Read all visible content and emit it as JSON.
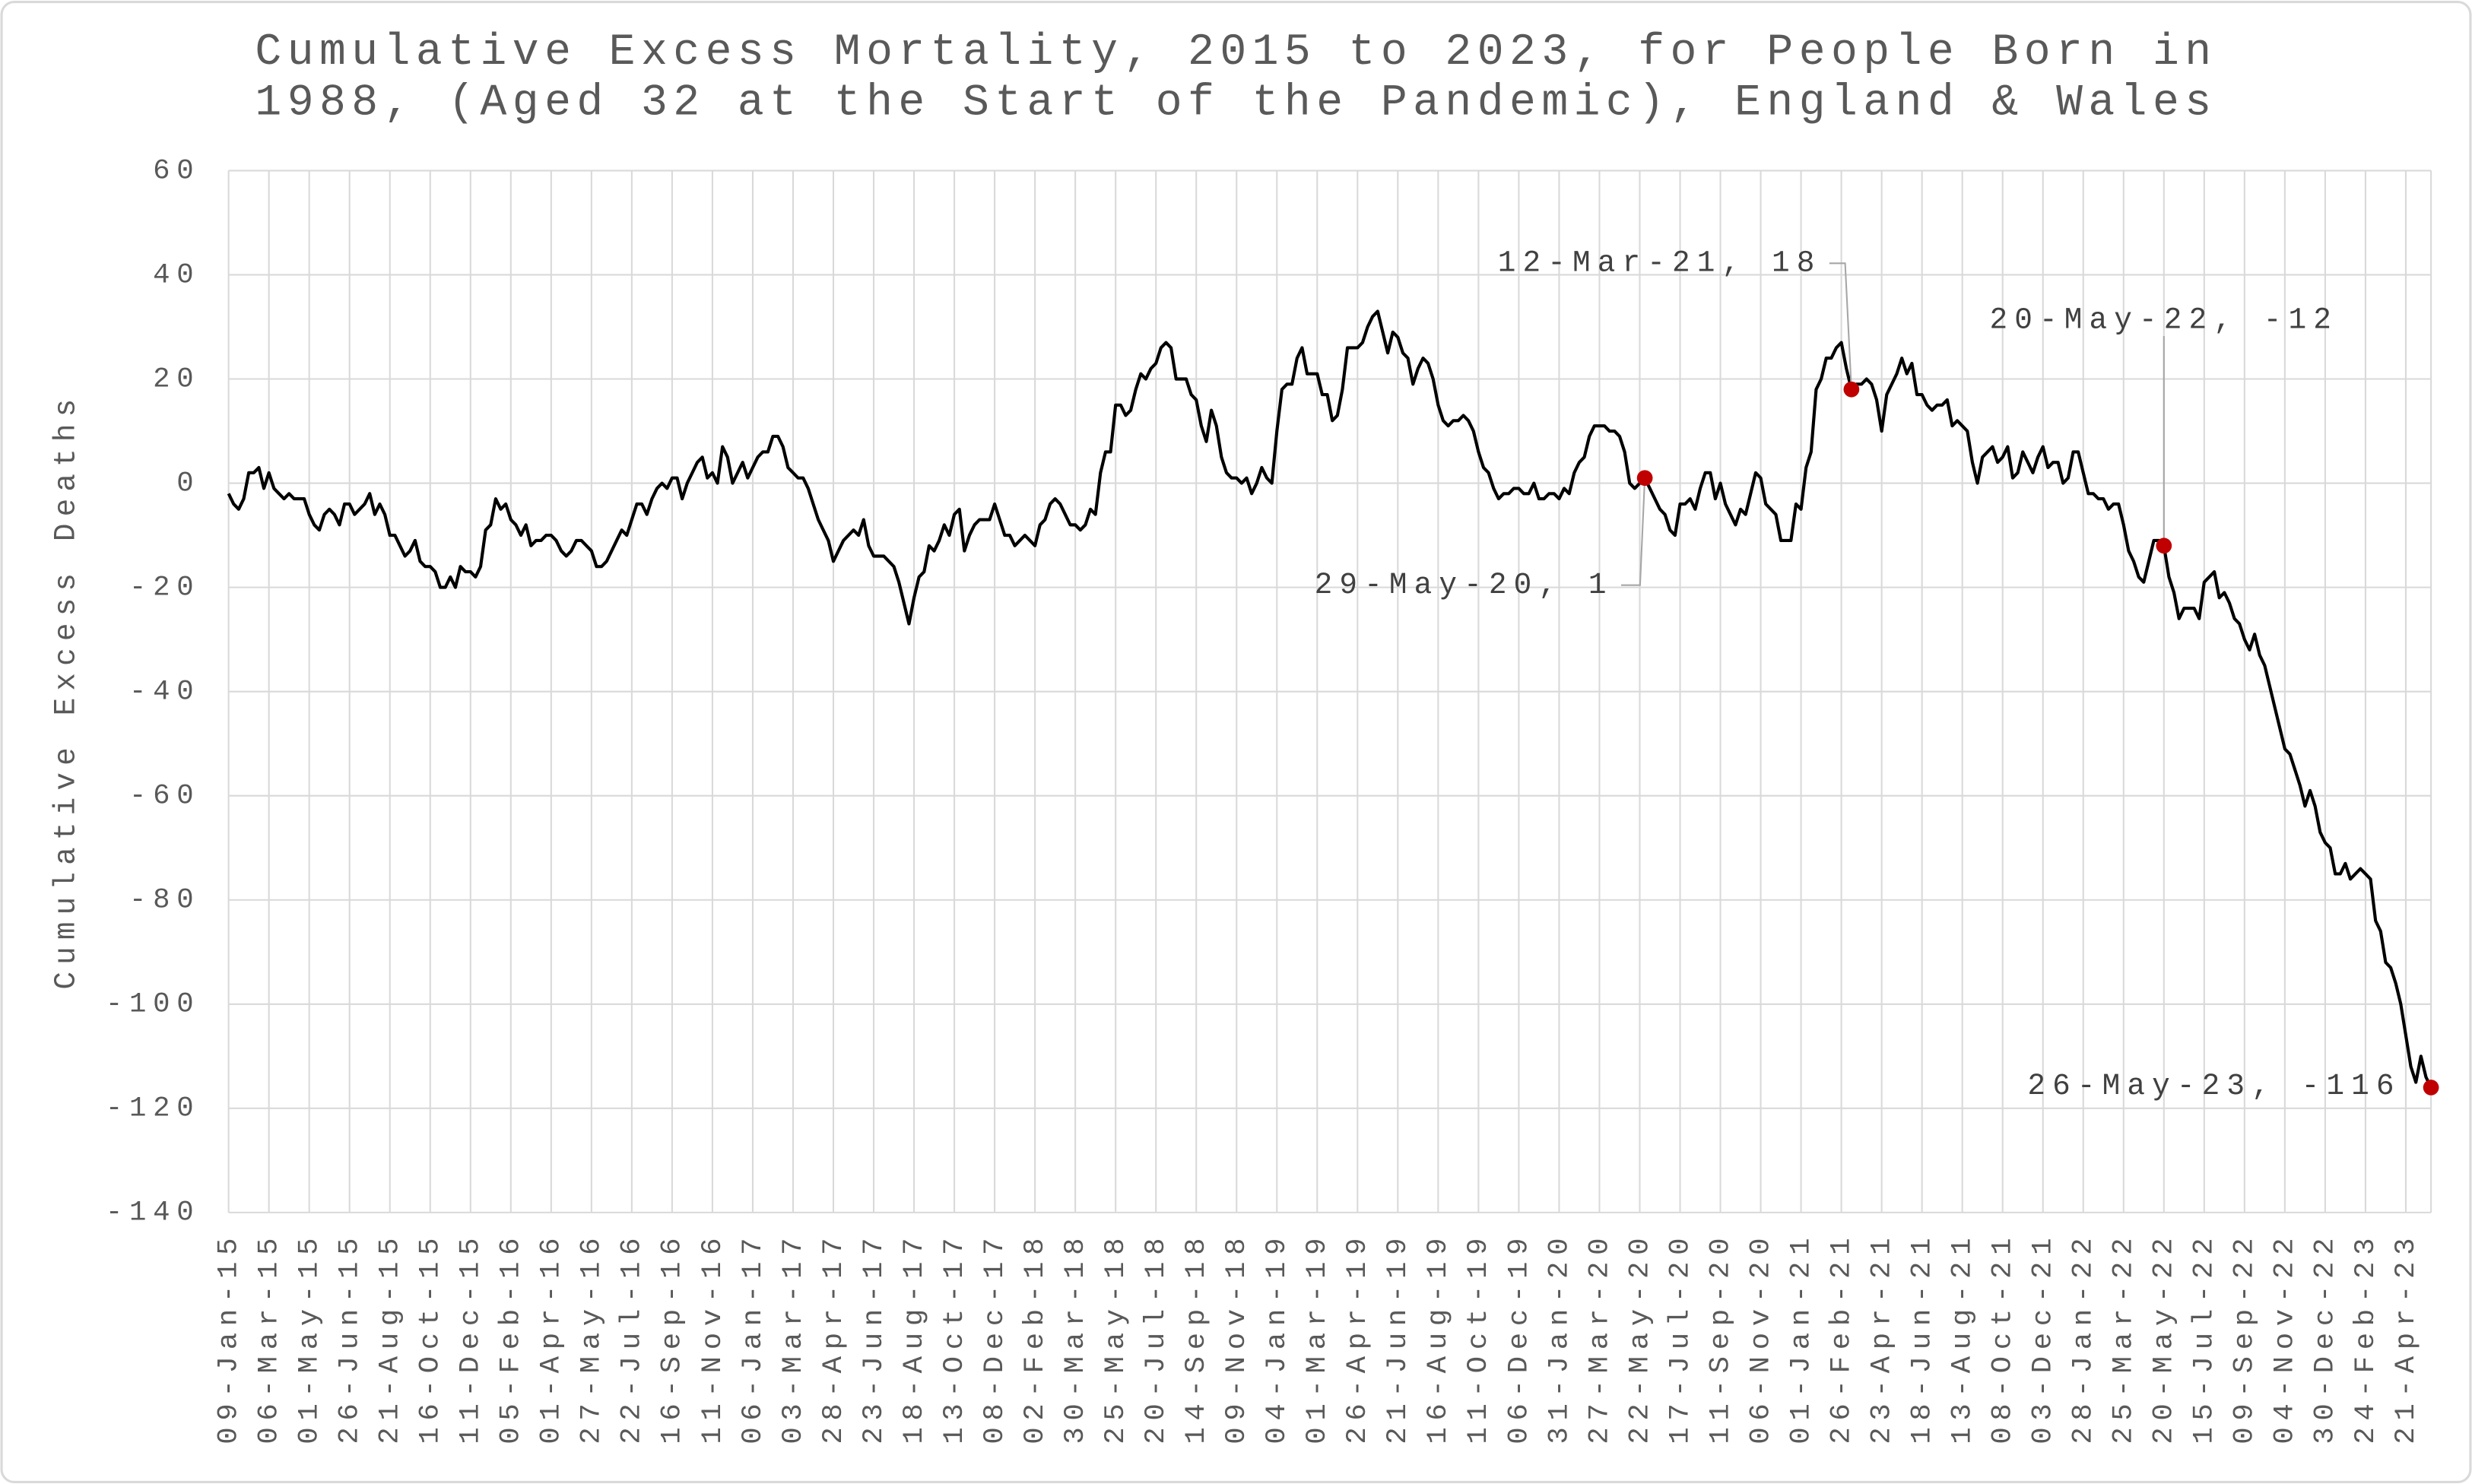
{
  "chart_data": {
    "type": "line",
    "title": [
      "Cumulative Excess Mortality, 2015 to 2023, for People Born in",
      "1988, (Aged 32 at the Start of the Pandemic), England & Wales"
    ],
    "y_label": "Cumulative Excess Deaths",
    "color": "#000000",
    "marker_color": "#c00000",
    "grid": true,
    "ylim": [
      -140,
      60
    ],
    "yticks": [
      60,
      40,
      20,
      0,
      -20,
      -40,
      -60,
      -80,
      -100,
      -120,
      -140
    ],
    "categories": [
      "09-Jan-15",
      null,
      null,
      null,
      null,
      null,
      null,
      null,
      "06-Mar-15",
      null,
      null,
      null,
      null,
      null,
      null,
      null,
      "01-May-15",
      null,
      null,
      null,
      null,
      null,
      null,
      null,
      "26-Jun-15",
      null,
      null,
      null,
      null,
      null,
      null,
      null,
      "21-Aug-15",
      null,
      null,
      null,
      null,
      null,
      null,
      null,
      "16-Oct-15",
      null,
      null,
      null,
      null,
      null,
      null,
      null,
      "11-Dec-15",
      null,
      null,
      null,
      null,
      null,
      null,
      null,
      "05-Feb-16",
      null,
      null,
      null,
      null,
      null,
      null,
      null,
      "01-Apr-16",
      null,
      null,
      null,
      null,
      null,
      null,
      null,
      "27-May-16",
      null,
      null,
      null,
      null,
      null,
      null,
      null,
      "22-Jul-16",
      null,
      null,
      null,
      null,
      null,
      null,
      null,
      "16-Sep-16",
      null,
      null,
      null,
      null,
      null,
      null,
      null,
      "11-Nov-16",
      null,
      null,
      null,
      null,
      null,
      null,
      null,
      "06-Jan-17",
      null,
      null,
      null,
      null,
      null,
      null,
      null,
      "03-Mar-17",
      null,
      null,
      null,
      null,
      null,
      null,
      null,
      "28-Apr-17",
      null,
      null,
      null,
      null,
      null,
      null,
      null,
      "23-Jun-17",
      null,
      null,
      null,
      null,
      null,
      null,
      null,
      "18-Aug-17",
      null,
      null,
      null,
      null,
      null,
      null,
      null,
      "13-Oct-17",
      null,
      null,
      null,
      null,
      null,
      null,
      null,
      "08-Dec-17",
      null,
      null,
      null,
      null,
      null,
      null,
      null,
      "02-Feb-18",
      null,
      null,
      null,
      null,
      null,
      null,
      null,
      "30-Mar-18",
      null,
      null,
      null,
      null,
      null,
      null,
      null,
      "25-May-18",
      null,
      null,
      null,
      null,
      null,
      null,
      null,
      "20-Jul-18",
      null,
      null,
      null,
      null,
      null,
      null,
      null,
      "14-Sep-18",
      null,
      null,
      null,
      null,
      null,
      null,
      null,
      "09-Nov-18",
      null,
      null,
      null,
      null,
      null,
      null,
      null,
      "04-Jan-19",
      null,
      null,
      null,
      null,
      null,
      null,
      null,
      "01-Mar-19",
      null,
      null,
      null,
      null,
      null,
      null,
      null,
      "26-Apr-19",
      null,
      null,
      null,
      null,
      null,
      null,
      null,
      "21-Jun-19",
      null,
      null,
      null,
      null,
      null,
      null,
      null,
      "16-Aug-19",
      null,
      null,
      null,
      null,
      null,
      null,
      null,
      "11-Oct-19",
      null,
      null,
      null,
      null,
      null,
      null,
      null,
      "06-Dec-19",
      null,
      null,
      null,
      null,
      null,
      null,
      null,
      "31-Jan-20",
      null,
      null,
      null,
      null,
      null,
      null,
      null,
      "27-Mar-20",
      null,
      null,
      null,
      null,
      null,
      null,
      null,
      "22-May-20",
      null,
      null,
      null,
      null,
      null,
      null,
      null,
      "17-Jul-20",
      null,
      null,
      null,
      null,
      null,
      null,
      null,
      "11-Sep-20",
      null,
      null,
      null,
      null,
      null,
      null,
      null,
      "06-Nov-20",
      null,
      null,
      null,
      null,
      null,
      null,
      null,
      "01-Jan-21",
      null,
      null,
      null,
      null,
      null,
      null,
      null,
      "26-Feb-21",
      null,
      null,
      null,
      null,
      null,
      null,
      null,
      "23-Apr-21",
      null,
      null,
      null,
      null,
      null,
      null,
      null,
      "18-Jun-21",
      null,
      null,
      null,
      null,
      null,
      null,
      null,
      "13-Aug-21",
      null,
      null,
      null,
      null,
      null,
      null,
      null,
      "08-Oct-21",
      null,
      null,
      null,
      null,
      null,
      null,
      null,
      "03-Dec-21",
      null,
      null,
      null,
      null,
      null,
      null,
      null,
      "28-Jan-22",
      null,
      null,
      null,
      null,
      null,
      null,
      null,
      "25-Mar-22",
      null,
      null,
      null,
      null,
      null,
      null,
      null,
      "20-May-22",
      null,
      null,
      null,
      null,
      null,
      null,
      null,
      "15-Jul-22",
      null,
      null,
      null,
      null,
      null,
      null,
      null,
      "09-Sep-22",
      null,
      null,
      null,
      null,
      null,
      null,
      null,
      "04-Nov-22",
      null,
      null,
      null,
      null,
      null,
      null,
      null,
      "30-Dec-22",
      null,
      null,
      null,
      null,
      null,
      null,
      null,
      "24-Feb-23",
      null,
      null,
      null,
      null,
      null,
      null,
      null,
      "21-Apr-23",
      null,
      null,
      null,
      null,
      null
    ],
    "values": [
      -2,
      -4,
      -5,
      -3,
      2,
      2,
      3,
      -1,
      2,
      -1,
      -2,
      -3,
      -2,
      -3,
      -3,
      -3,
      -6,
      -8,
      -9,
      -6,
      -5,
      -6,
      -8,
      -4,
      -4,
      -6,
      -5,
      -4,
      -2,
      -6,
      -4,
      -6,
      -10,
      -10,
      -12,
      -14,
      -13,
      -11,
      -15,
      -16,
      -16,
      -17,
      -20,
      -20,
      -18,
      -20,
      -16,
      -17,
      -17,
      -18,
      -16,
      -9,
      -8,
      -3,
      -5,
      -4,
      -7,
      -8,
      -10,
      -8,
      -12,
      -11,
      -11,
      -10,
      -10,
      -11,
      -13,
      -14,
      -13,
      -11,
      -11,
      -12,
      -13,
      -16,
      -16,
      -15,
      -13,
      -11,
      -9,
      -10,
      -7,
      -4,
      -4,
      -6,
      -3,
      -1,
      0,
      -1,
      1,
      1,
      -3,
      0,
      2,
      4,
      5,
      1,
      2,
      0,
      7,
      5,
      0,
      2,
      4,
      1,
      3,
      5,
      6,
      6,
      9,
      9,
      7,
      3,
      2,
      1,
      1,
      -1,
      -4,
      -7,
      -9,
      -11,
      -15,
      -13,
      -11,
      -10,
      -9,
      -10,
      -7,
      -12,
      -14,
      -14,
      -14,
      -15,
      -16,
      -19,
      -23,
      -27,
      -22,
      -18,
      -17,
      -12,
      -13,
      -11,
      -8,
      -10,
      -6,
      -5,
      -13,
      -10,
      -8,
      -7,
      -7,
      -7,
      -4,
      -7,
      -10,
      -10,
      -12,
      -11,
      -10,
      -11,
      -12,
      -8,
      -7,
      -4,
      -3,
      -4,
      -6,
      -8,
      -8,
      -9,
      -8,
      -5,
      -6,
      2,
      6,
      6,
      15,
      15,
      13,
      14,
      18,
      21,
      20,
      22,
      23,
      26,
      27,
      26,
      20,
      20,
      20,
      17,
      16,
      11,
      8,
      14,
      11,
      5,
      2,
      1,
      1,
      0,
      1,
      -2,
      0,
      3,
      1,
      0,
      10,
      18,
      19,
      19,
      24,
      26,
      21,
      21,
      21,
      17,
      17,
      12,
      13,
      18,
      26,
      26,
      26,
      27,
      30,
      32,
      33,
      29,
      25,
      29,
      28,
      25,
      24,
      19,
      22,
      24,
      23,
      20,
      15,
      12,
      11,
      12,
      12,
      13,
      12,
      10,
      6,
      3,
      2,
      -1,
      -3,
      -2,
      -2,
      -1,
      -1,
      -2,
      -2,
      0,
      -3,
      -3,
      -2,
      -2,
      -3,
      -1,
      -2,
      2,
      4,
      5,
      9,
      11,
      11,
      11,
      10,
      10,
      9,
      6,
      0,
      -1,
      0,
      1,
      -1,
      -3,
      -5,
      -6,
      -9,
      -10,
      -4,
      -4,
      -3,
      -5,
      -1,
      2,
      2,
      -3,
      0,
      -4,
      -6,
      -8,
      -5,
      -6,
      -2,
      2,
      1,
      -4,
      -5,
      -6,
      -11,
      -11,
      -11,
      -4,
      -5,
      3,
      6,
      18,
      20,
      24,
      24,
      26,
      27,
      22,
      18,
      19,
      19,
      20,
      19,
      16,
      10,
      17,
      19,
      21,
      24,
      21,
      23,
      17,
      17,
      15,
      14,
      15,
      15,
      16,
      11,
      12,
      11,
      10,
      4,
      0,
      5,
      6,
      7,
      4,
      5,
      7,
      1,
      2,
      6,
      4,
      2,
      5,
      7,
      3,
      4,
      4,
      0,
      1,
      6,
      6,
      2,
      -2,
      -2,
      -3,
      -3,
      -5,
      -4,
      -4,
      -8,
      -13,
      -15,
      -18,
      -19,
      -15,
      -11,
      -11,
      -12,
      -18,
      -21,
      -26,
      -24,
      -24,
      -24,
      -26,
      -19,
      -18,
      -17,
      -22,
      -21,
      -23,
      -26,
      -27,
      -30,
      -32,
      -29,
      -33,
      -35,
      -39,
      -43,
      -47,
      -51,
      -52,
      -55,
      -58,
      -62,
      -59,
      -62,
      -67,
      -69,
      -70,
      -75,
      -75,
      -73,
      -76,
      -75,
      -74,
      -75,
      -76,
      -84,
      -86,
      -92,
      -93,
      -96,
      -100,
      -106,
      -112,
      -115,
      -110,
      -114,
      -116
    ],
    "annotations": [
      {
        "text": "29-May-20, 1",
        "x": 281
      },
      {
        "text": "12-Mar-21, 18",
        "x": 322
      },
      {
        "text": "20-May-22, -12",
        "x": 384
      },
      {
        "text": "26-May-23, -116",
        "x": 437
      }
    ]
  }
}
